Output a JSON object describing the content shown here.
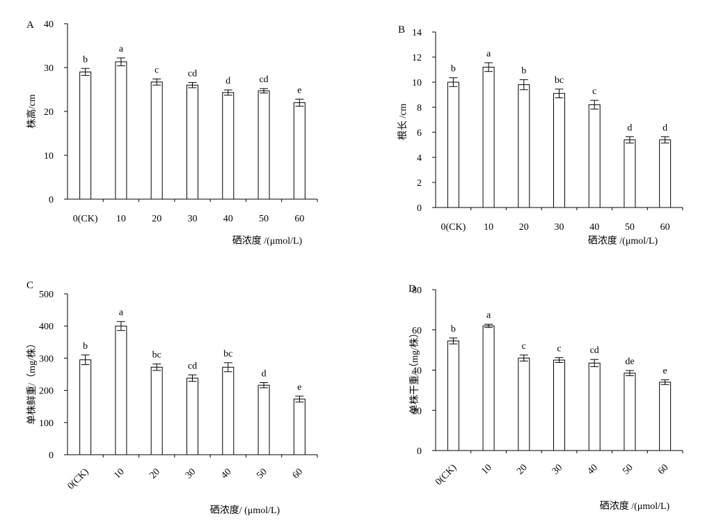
{
  "chart_data": [
    {
      "type": "bar",
      "panel_label": "A",
      "categories": [
        "0(CK)",
        "10",
        "20",
        "30",
        "40",
        "50",
        "60"
      ],
      "values": [
        29.0,
        31.3,
        26.7,
        26.0,
        24.3,
        24.7,
        22.0
      ],
      "error": [
        0.8,
        0.9,
        0.7,
        0.6,
        0.6,
        0.5,
        0.8
      ],
      "letters": [
        "b",
        "a",
        "c",
        "cd",
        "d",
        "cd",
        "e"
      ],
      "ylabel": "株高/cm",
      "xlabel": "硒浓度 /(μmol/L)",
      "ylim": [
        0,
        40
      ],
      "yticks": [
        0,
        10,
        20,
        30,
        40
      ],
      "rotated_xticks": false,
      "grid": false
    },
    {
      "type": "bar",
      "panel_label": "B",
      "categories": [
        "0(CK)",
        "10",
        "20",
        "30",
        "40",
        "50",
        "60"
      ],
      "values": [
        10.0,
        11.2,
        9.8,
        9.1,
        8.2,
        5.4,
        5.4
      ],
      "error": [
        0.35,
        0.35,
        0.4,
        0.35,
        0.35,
        0.25,
        0.25
      ],
      "letters": [
        "b",
        "a",
        "b",
        "bc",
        "c",
        "d",
        "d"
      ],
      "ylabel": "根长 /cm",
      "xlabel": "硒浓度 /(μmol/L)",
      "ylim": [
        0,
        14
      ],
      "yticks": [
        0,
        2,
        4,
        6,
        8,
        10,
        12,
        14
      ],
      "rotated_xticks": false,
      "grid": false
    },
    {
      "type": "bar",
      "panel_label": "C",
      "categories": [
        "0(CK)",
        "10",
        "20",
        "30",
        "40",
        "50",
        "60"
      ],
      "values": [
        295,
        400,
        272,
        238,
        272,
        216,
        173
      ],
      "error": [
        15,
        14,
        10,
        10,
        14,
        8,
        9
      ],
      "letters": [
        "b",
        "a",
        "bc",
        "cd",
        "bc",
        "d",
        "e"
      ],
      "ylabel": "单株鲜重/（mg/株）",
      "xlabel": "硒浓度/ (μmol/L)",
      "ylim": [
        0,
        500
      ],
      "yticks": [
        0,
        100,
        200,
        300,
        400,
        500
      ],
      "rotated_xticks": true,
      "grid": false
    },
    {
      "type": "bar",
      "panel_label": "D",
      "categories": [
        "0(CK)",
        "10",
        "20",
        "30",
        "40",
        "50",
        "60"
      ],
      "values": [
        54.5,
        62.0,
        46.0,
        45.0,
        43.5,
        38.5,
        34.0
      ],
      "error": [
        1.5,
        0.8,
        1.5,
        1.2,
        1.8,
        1.3,
        1.2
      ],
      "letters": [
        "b",
        "a",
        "c",
        "c",
        "cd",
        "de",
        "e"
      ],
      "ylabel": "单株干重/（mg/株）",
      "xlabel": "硒浓度 /(μmol/L)",
      "ylim": [
        0,
        80
      ],
      "yticks": [
        0,
        20,
        40,
        60,
        80
      ],
      "rotated_xticks": true,
      "grid": false
    }
  ]
}
